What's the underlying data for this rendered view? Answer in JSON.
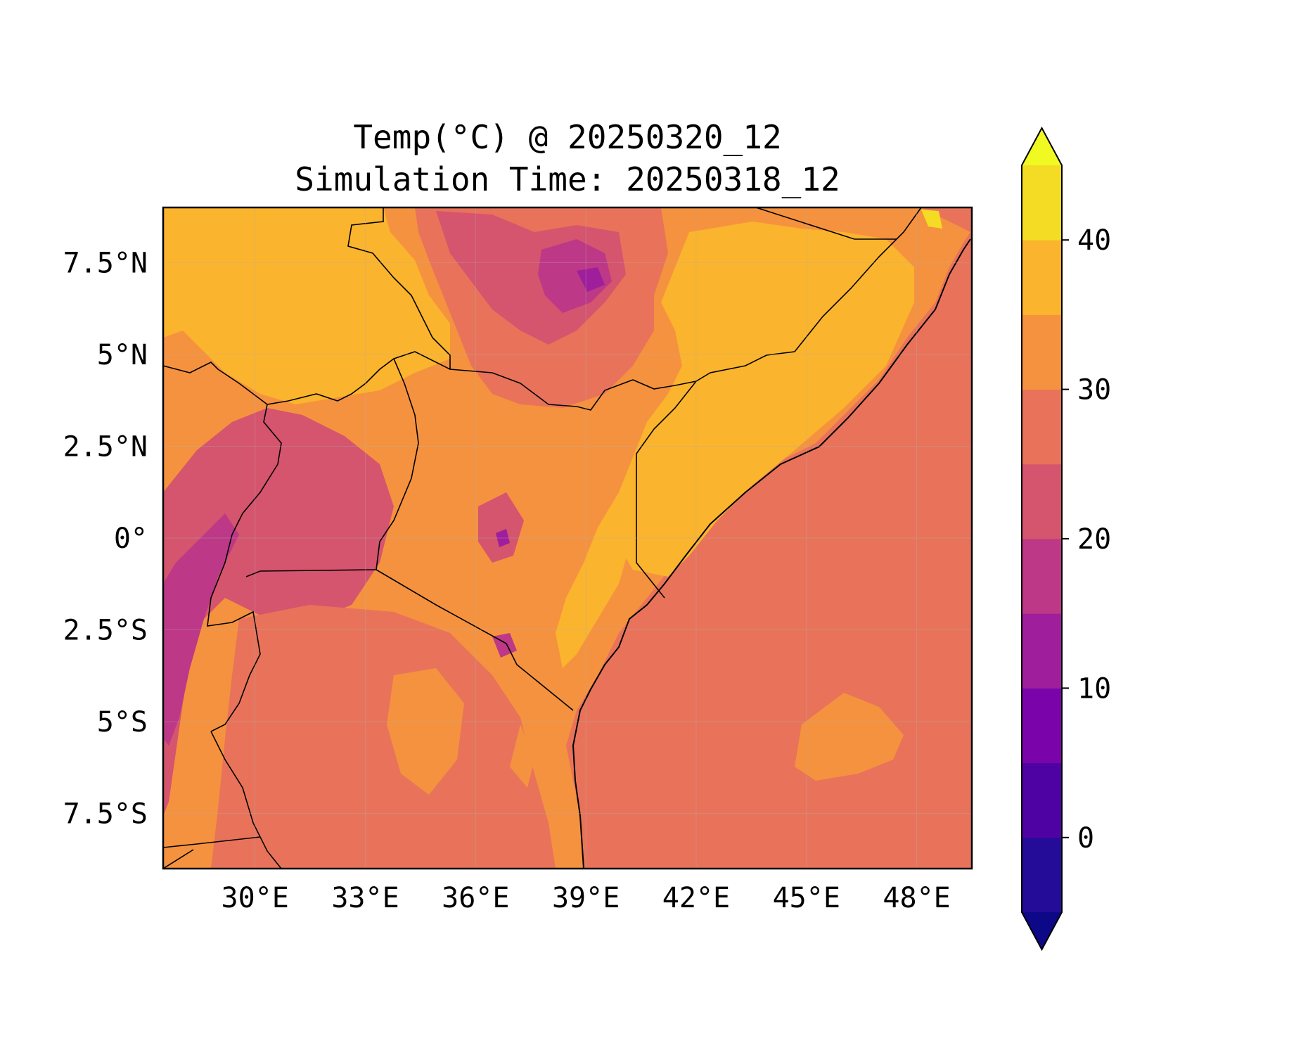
{
  "title_line1": "Temp(°C) @ 20250320_12",
  "title_line2": "Simulation Time: 20250318_12",
  "map": {
    "lon_range": [
      27.5,
      49.5
    ],
    "lat_range": [
      -9,
      9
    ],
    "lon_ticks": [
      {
        "value": 30,
        "label": "30°E"
      },
      {
        "value": 33,
        "label": "33°E"
      },
      {
        "value": 36,
        "label": "36°E"
      },
      {
        "value": 39,
        "label": "39°E"
      },
      {
        "value": 42,
        "label": "42°E"
      },
      {
        "value": 45,
        "label": "45°E"
      },
      {
        "value": 48,
        "label": "48°E"
      }
    ],
    "lat_ticks": [
      {
        "value": 7.5,
        "label": "7.5°N"
      },
      {
        "value": 5,
        "label": "5°N"
      },
      {
        "value": 2.5,
        "label": "2.5°N"
      },
      {
        "value": 0,
        "label": "0°"
      },
      {
        "value": -2.5,
        "label": "2.5°S"
      },
      {
        "value": -5,
        "label": "5°S"
      },
      {
        "value": -7.5,
        "label": "7.5°S"
      }
    ],
    "ocean_color": "#e8735a",
    "land_color": "#f5923f"
  },
  "colorbar": {
    "range": [
      -5,
      45
    ],
    "extend": "both",
    "ticks": [
      {
        "value": 0,
        "label": "0"
      },
      {
        "value": 10,
        "label": "10"
      },
      {
        "value": 20,
        "label": "20"
      },
      {
        "value": 30,
        "label": "30"
      },
      {
        "value": 40,
        "label": "40"
      }
    ],
    "levels": [
      {
        "from": -5,
        "to": 0,
        "color": "#240c98"
      },
      {
        "from": 0,
        "to": 5,
        "color": "#4f02a3"
      },
      {
        "from": 5,
        "to": 10,
        "color": "#7a04aa"
      },
      {
        "from": 10,
        "to": 15,
        "color": "#9f1e9c"
      },
      {
        "from": 15,
        "to": 20,
        "color": "#bd3887"
      },
      {
        "from": 20,
        "to": 25,
        "color": "#d5546e"
      },
      {
        "from": 25,
        "to": 30,
        "color": "#e8735a"
      },
      {
        "from": 30,
        "to": 35,
        "color": "#f5923f"
      },
      {
        "from": 35,
        "to": 40,
        "color": "#fbb42d"
      },
      {
        "from": 40,
        "to": 45,
        "color": "#f4dc24"
      }
    ],
    "under_color": "#0d0887",
    "over_color": "#f0f921"
  }
}
